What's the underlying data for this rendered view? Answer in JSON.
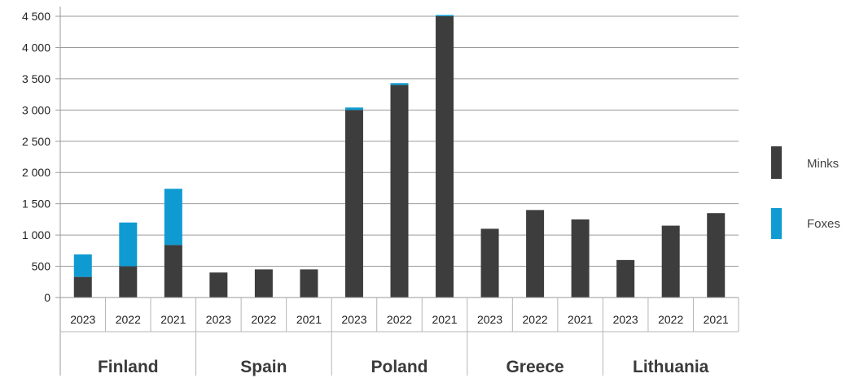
{
  "chart_data": {
    "type": "bar",
    "stacked": true,
    "title": "",
    "xlabel": "",
    "ylabel": "",
    "ylim": [
      0,
      4500
    ],
    "yticks": [
      0,
      500,
      1000,
      1500,
      2000,
      2500,
      3000,
      3500,
      4000,
      4500
    ],
    "ytick_labels": [
      "0",
      "500",
      "1 000",
      "1 500",
      "2 000",
      "2 500",
      "3 000",
      "3 500",
      "4 000",
      "4 500"
    ],
    "grid": true,
    "legend": "right",
    "groups": [
      {
        "name": "Finland",
        "years": [
          "2023",
          "2022",
          "2021"
        ],
        "minks": [
          330,
          500,
          840
        ],
        "foxes": [
          360,
          700,
          900
        ]
      },
      {
        "name": "Spain",
        "years": [
          "2023",
          "2022",
          "2021"
        ],
        "minks": [
          400,
          450,
          450
        ],
        "foxes": [
          0,
          0,
          0
        ]
      },
      {
        "name": "Poland",
        "years": [
          "2023",
          "2022",
          "2021"
        ],
        "minks": [
          3000,
          3400,
          4500
        ],
        "foxes": [
          40,
          30,
          20
        ]
      },
      {
        "name": "Greece",
        "years": [
          "2023",
          "2022",
          "2021"
        ],
        "minks": [
          1100,
          1400,
          1250
        ],
        "foxes": [
          0,
          0,
          0
        ]
      },
      {
        "name": "Lithuania",
        "years": [
          "2023",
          "2022",
          "2021"
        ],
        "minks": [
          600,
          1150,
          1350
        ],
        "foxes": [
          0,
          0,
          0
        ]
      }
    ],
    "series": [
      {
        "name": "Minks",
        "color": "#3d3d3d"
      },
      {
        "name": "Foxes",
        "color": "#0f9bd1"
      }
    ]
  }
}
